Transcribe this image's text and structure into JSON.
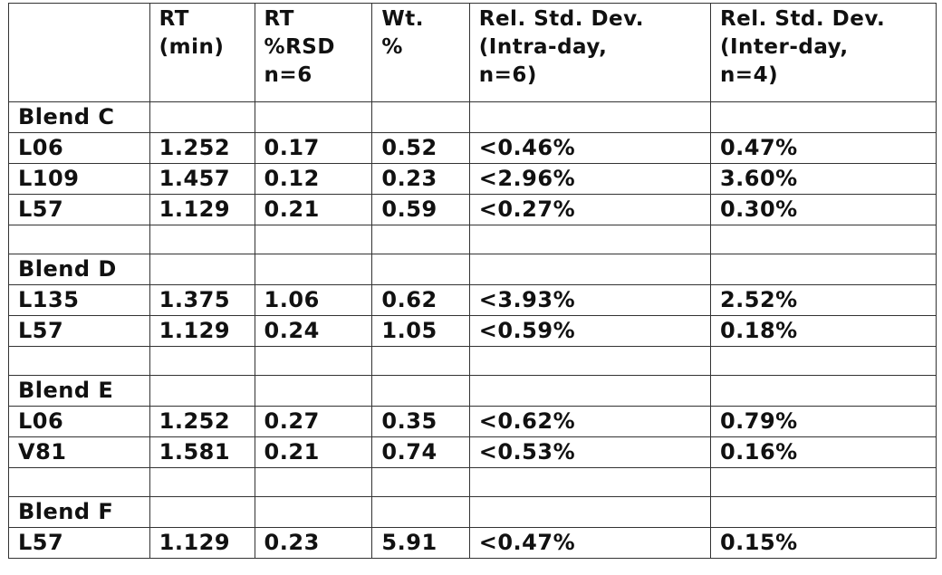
{
  "table": {
    "headers": [
      "",
      "RT\n(min)",
      "RT\n%RSD\nn=6",
      "Wt.\n%",
      "Rel. Std. Dev.\n (Intra-day,\nn=6)",
      "Rel. Std. Dev.\n(Inter-day,\nn=4)"
    ],
    "rows": [
      {
        "kind": "blend",
        "cells": [
          "Blend C",
          "",
          "",
          "",
          "",
          ""
        ]
      },
      {
        "kind": "data",
        "cells": [
          "L06",
          "1.252",
          "0.17",
          "0.52",
          "<0.46%",
          "0.47%"
        ]
      },
      {
        "kind": "data",
        "cells": [
          "L109",
          "1.457",
          "0.12",
          "0.23",
          "<2.96%",
          "3.60%"
        ]
      },
      {
        "kind": "data",
        "cells": [
          "L57",
          "1.129",
          "0.21",
          "0.59",
          "<0.27%",
          "0.30%"
        ]
      },
      {
        "kind": "gap",
        "cells": [
          "",
          "",
          "",
          "",
          "",
          ""
        ]
      },
      {
        "kind": "blend",
        "cells": [
          "Blend D",
          "",
          "",
          "",
          "",
          ""
        ]
      },
      {
        "kind": "data",
        "cells": [
          "L135",
          "1.375",
          "1.06",
          "0.62",
          "<3.93%",
          "2.52%"
        ]
      },
      {
        "kind": "data-nohz",
        "cells": [
          "L57",
          "1.129",
          "0.24",
          "1.05",
          "<0.59%",
          "0.18%"
        ]
      },
      {
        "kind": "gap",
        "cells": [
          "",
          "",
          "",
          "",
          "",
          ""
        ]
      },
      {
        "kind": "blend",
        "cells": [
          "Blend E",
          "",
          "",
          "",
          "",
          ""
        ]
      },
      {
        "kind": "data",
        "cells": [
          "L06",
          "1.252",
          "0.27",
          "0.35",
          "<0.62%",
          "0.79%"
        ]
      },
      {
        "kind": "data",
        "cells": [
          "V81",
          "1.581",
          "0.21",
          "0.74",
          "<0.53%",
          "0.16%"
        ]
      },
      {
        "kind": "gap",
        "cells": [
          "",
          "",
          "",
          "",
          "",
          ""
        ]
      },
      {
        "kind": "blend",
        "cells": [
          "Blend F",
          "",
          "",
          "",
          "",
          ""
        ]
      },
      {
        "kind": "data",
        "cells": [
          "L57",
          "1.129",
          "0.23",
          "5.91",
          "<0.47%",
          "0.15%"
        ]
      }
    ]
  }
}
